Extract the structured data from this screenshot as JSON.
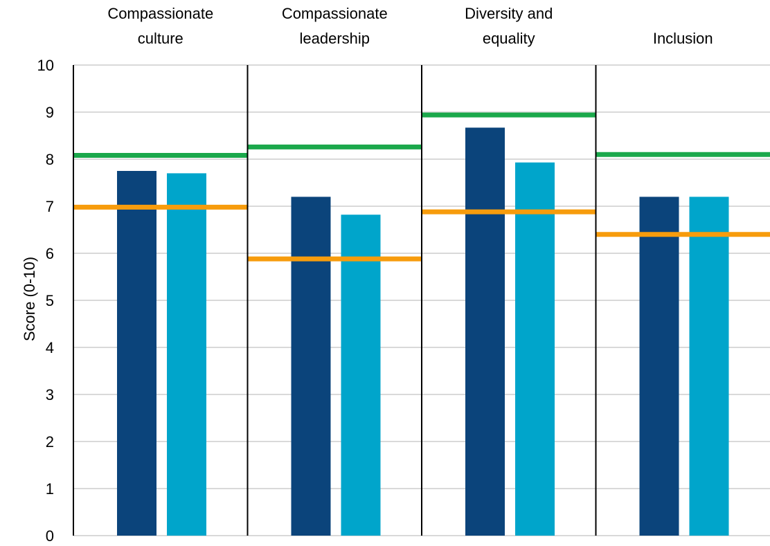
{
  "chart_data": {
    "type": "bar",
    "categories": [
      [
        "Compassionate",
        "culture"
      ],
      [
        "Compassionate",
        "leadership"
      ],
      [
        "Diversity and",
        "equality"
      ],
      [
        "Inclusion"
      ]
    ],
    "ylabel": "Score (0-10)",
    "ylim": [
      0,
      10
    ],
    "yticks": [
      0,
      1,
      2,
      3,
      4,
      5,
      6,
      7,
      8,
      9,
      10
    ],
    "grid": true,
    "series": [
      {
        "type": "bar",
        "color": "#0b447b",
        "values": [
          7.75,
          7.2,
          8.67,
          7.2
        ]
      },
      {
        "type": "bar",
        "color": "#00a5cb",
        "values": [
          7.7,
          6.82,
          7.93,
          7.2
        ]
      },
      {
        "type": "line",
        "color": "#1ba84b",
        "values": [
          8.08,
          8.26,
          8.94,
          8.1
        ]
      },
      {
        "type": "line",
        "color": "#f79c0c",
        "values": [
          6.98,
          5.88,
          6.88,
          6.4
        ]
      }
    ],
    "colors": {
      "grid": "#d9d9d9",
      "divider": "#000000"
    }
  }
}
